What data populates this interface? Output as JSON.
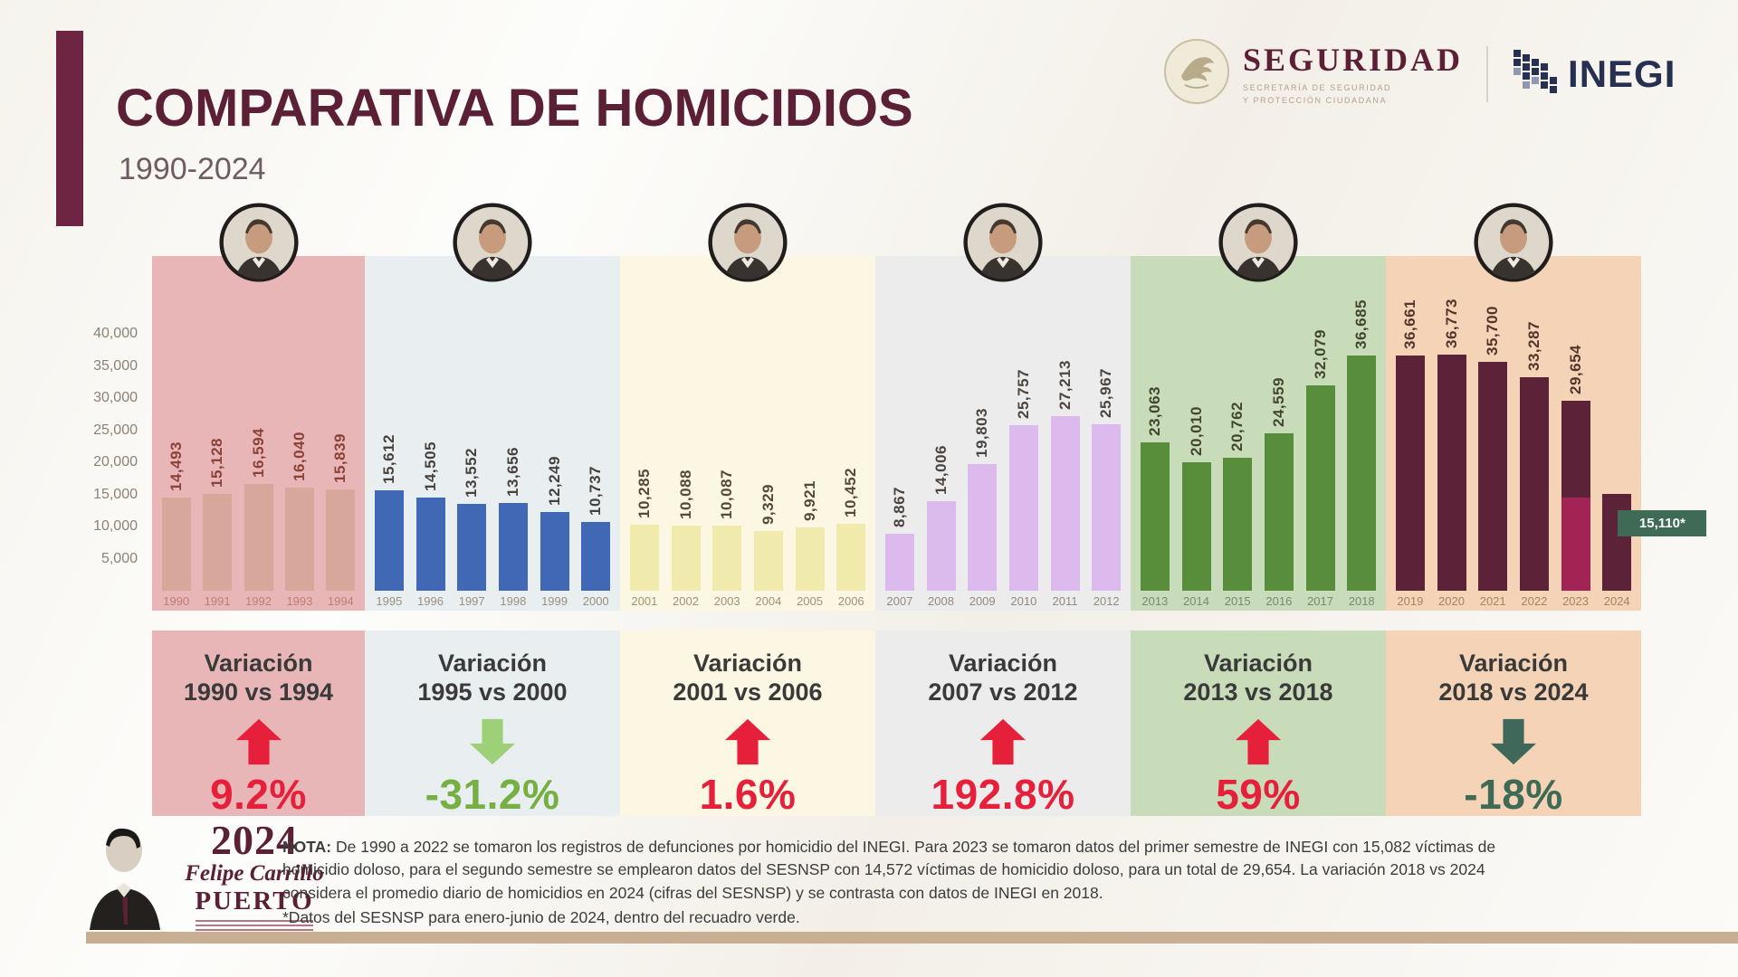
{
  "header": {
    "title": "COMPARATIVA DE HOMICIDIOS",
    "subtitle": "1990-2024",
    "logos": {
      "seguridad_name": "SEGURIDAD",
      "seguridad_sub1": "SECRETARÍA DE SEGURIDAD",
      "seguridad_sub2": "Y PROTECCIÓN CIUDADANA",
      "inegi_name": "INEGI"
    }
  },
  "chart_data": {
    "type": "bar",
    "title": "COMPARATIVA DE HOMICIDIOS",
    "subtitle": "1990-2024",
    "ylim": [
      0,
      40000
    ],
    "grid": false,
    "yticks": [
      {
        "value": 40000,
        "label": "40,000"
      },
      {
        "value": 35000,
        "label": "35,000"
      },
      {
        "value": 30000,
        "label": "30,000"
      },
      {
        "value": 25000,
        "label": "25,000"
      },
      {
        "value": 20000,
        "label": "20,000"
      },
      {
        "value": 15000,
        "label": "15,000"
      },
      {
        "value": 10000,
        "label": "10,000"
      },
      {
        "value": 5000,
        "label": "5,000"
      }
    ],
    "groups": [
      {
        "id": "1990-1994",
        "years": [
          "1990",
          "1991",
          "1992",
          "1993",
          "1994"
        ],
        "values": [
          14493,
          15128,
          16594,
          16040,
          15839
        ],
        "labels": [
          "14,493",
          "15,128",
          "16,594",
          "16,040",
          "15,839"
        ],
        "panel_color": "#e9b6b8",
        "bar_color": "#d8a79b",
        "label_color": "#8a4136",
        "year_color": "#bb7e74",
        "variation": {
          "title": "Variación",
          "range": "1990 vs 1994",
          "direction": "up",
          "pct": "9.2%",
          "arrow_color": "#e6203a",
          "pct_color": "#e6203a"
        }
      },
      {
        "id": "1995-2000",
        "years": [
          "1995",
          "1996",
          "1997",
          "1998",
          "1999",
          "2000"
        ],
        "values": [
          15612,
          14505,
          13552,
          13656,
          12249,
          10737
        ],
        "labels": [
          "15,612",
          "14,505",
          "13,552",
          "13,656",
          "12,249",
          "10,737"
        ],
        "panel_color": "#e9eef1",
        "bar_color": "#4168b4",
        "label_color": "#46413c",
        "year_color": "#98907f",
        "variation": {
          "title": "Variación",
          "range": "1995 vs 2000",
          "direction": "down",
          "pct": "-31.2%",
          "arrow_color": "#9ed077",
          "pct_color": "#76b043"
        }
      },
      {
        "id": "2001-2006",
        "years": [
          "2001",
          "2002",
          "2003",
          "2004",
          "2005",
          "2006"
        ],
        "values": [
          10285,
          10088,
          10087,
          9329,
          9921,
          10452
        ],
        "labels": [
          "10,285",
          "10,088",
          "10,087",
          "9,329",
          "9,921",
          "10,452"
        ],
        "panel_color": "#fbf7e2",
        "bar_color": "#f0eaad",
        "label_color": "#56483a",
        "year_color": "#9f9279",
        "variation": {
          "title": "Variación",
          "range": "2001 vs 2006",
          "direction": "up",
          "pct": "1.6%",
          "arrow_color": "#e6203a",
          "pct_color": "#e6203a"
        }
      },
      {
        "id": "2007-2012",
        "years": [
          "2007",
          "2008",
          "2009",
          "2010",
          "2011",
          "2012"
        ],
        "values": [
          8867,
          14006,
          19803,
          25757,
          27213,
          25967
        ],
        "labels": [
          "8,867",
          "14,006",
          "19,803",
          "25,757",
          "27,213",
          "25,967"
        ],
        "panel_color": "#ececec",
        "bar_color": "#dcbaee",
        "label_color": "#4c453f",
        "year_color": "#94897f",
        "variation": {
          "title": "Variación",
          "range": "2007 vs 2012",
          "direction": "up",
          "pct": "192.8%",
          "arrow_color": "#e6203a",
          "pct_color": "#e6203a"
        }
      },
      {
        "id": "2013-2018",
        "years": [
          "2013",
          "2014",
          "2015",
          "2016",
          "2017",
          "2018"
        ],
        "values": [
          23063,
          20010,
          20762,
          24559,
          32079,
          36685
        ],
        "labels": [
          "23,063",
          "20,010",
          "20,762",
          "24,559",
          "32,079",
          "36,685"
        ],
        "panel_color": "#c9dcba",
        "bar_color": "#588d3c",
        "label_color": "#42462f",
        "year_color": "#7a8a66",
        "variation": {
          "title": "Variación",
          "range": "2013 vs 2018",
          "direction": "up",
          "pct": "59%",
          "arrow_color": "#e6203a",
          "pct_color": "#e6203a"
        }
      },
      {
        "id": "2019-2024",
        "years": [
          "2019",
          "2020",
          "2021",
          "2022",
          "2023",
          "2024"
        ],
        "values": [
          36661,
          36773,
          35700,
          33287,
          29654,
          15110
        ],
        "labels": [
          "36,661",
          "36,773",
          "35,700",
          "33,287",
          "29,654",
          ""
        ],
        "panel_color": "#f4d3b7",
        "bar_color": "#5c2338",
        "label_color": "#53352c",
        "year_color": "#a9835f",
        "variation": {
          "title": "Variación",
          "range": "2018 vs 2024",
          "direction": "down",
          "pct": "-18%",
          "arrow_color": "#40685a",
          "pct_color": "#3f6a55"
        }
      }
    ],
    "special": {
      "split_year": "2023",
      "split_bottom_value": 14572,
      "split_bottom_color": "#a22456",
      "split_top_value": 15082,
      "badge_year": "2024",
      "badge_text": "15,110*",
      "badge_bg": "#3e6a56"
    }
  },
  "footer": {
    "brand_year": "2024",
    "brand_name": "Felipe Carrillo",
    "brand_puerto": "PUERTO",
    "note_label": "NOTA:",
    "note_text": " De 1990 a 2022 se tomaron los registros de defunciones por homicidio del INEGI. Para 2023 se tomaron datos del primer semestre de INEGI con 15,082 víctimas de homicidio doloso, para el segundo semestre se emplearon datos del SESNSP con 14,572 víctimas de homicidio doloso, para un total de 29,654. La variación 2018 vs 2024 considera el promedio diario de homicidios en 2024 (cifras del SESNSP) y se contrasta con datos de INEGI en 2018.",
    "note_asterisk": "*Datos del SESNSP para enero-junio de 2024, dentro del recuadro verde."
  }
}
